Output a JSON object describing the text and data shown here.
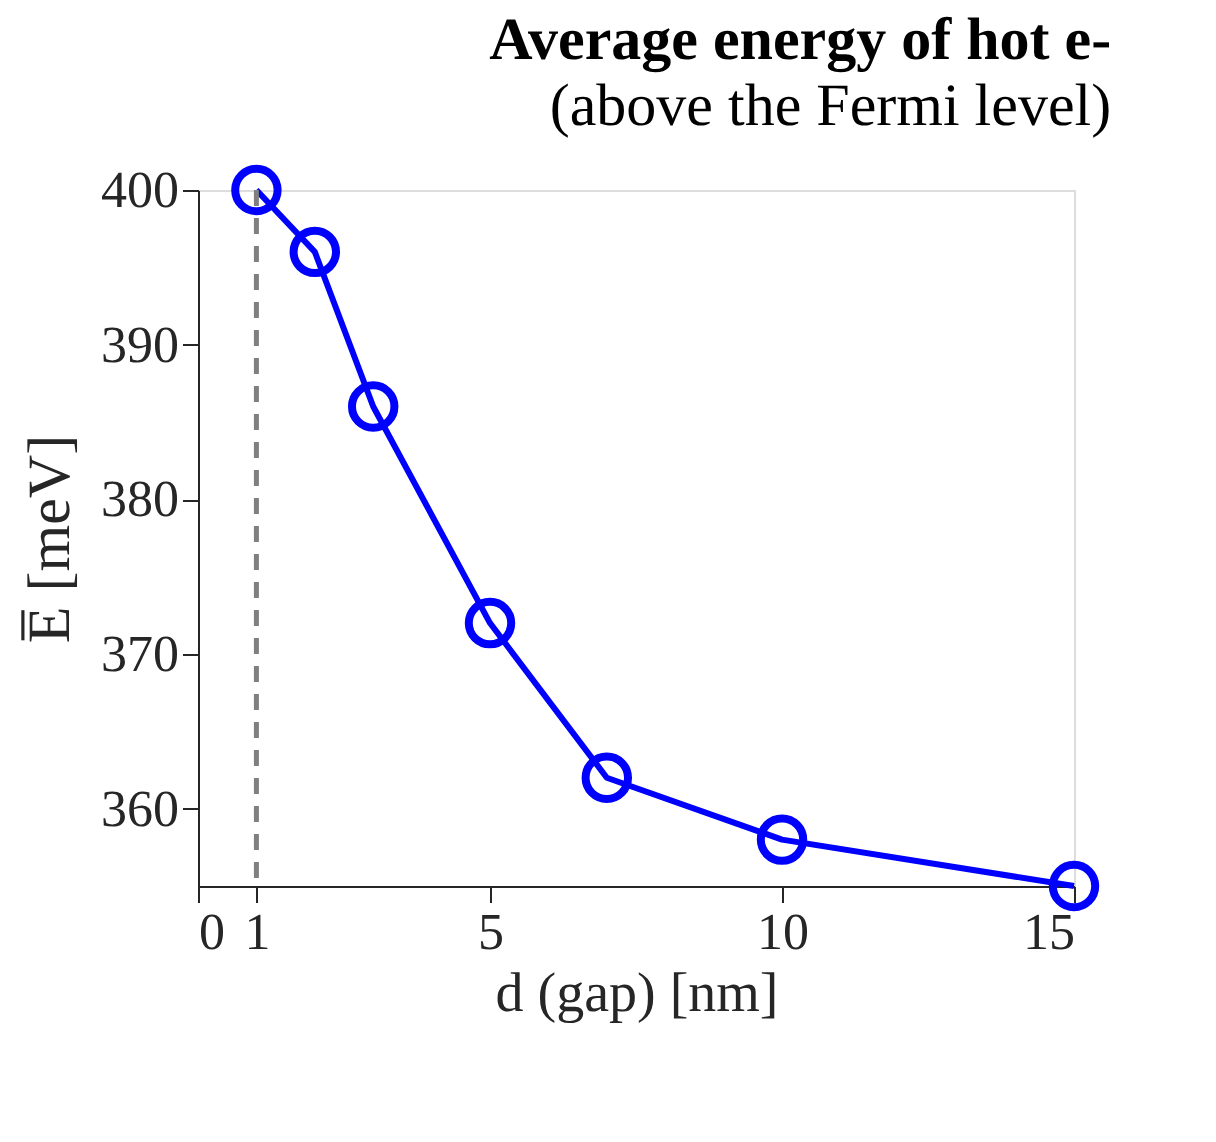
{
  "chart_data": {
    "type": "line",
    "title": "Average energy of hot e-",
    "subtitle": "(above the Fermi level)",
    "xlabel": "d (gap) [nm]",
    "ylabel": "E̅ [meV]",
    "x": [
      1,
      2,
      3,
      5,
      7,
      10,
      15
    ],
    "series": [
      {
        "color": "#0000ff",
        "values": [
          400,
          396,
          386,
          372,
          362,
          358,
          355
        ]
      }
    ],
    "xlim": [
      0,
      15
    ],
    "xticks": [
      0,
      1,
      5,
      10,
      15
    ],
    "ylim": [
      355,
      400
    ],
    "yticks": [
      360,
      370,
      380,
      390,
      400
    ],
    "ref_lines": [
      {
        "axis": "x",
        "value": 1,
        "color": "#808080",
        "line_style": "dashed"
      }
    ],
    "marker": "circle",
    "line_style": "solid",
    "grid": false
  }
}
